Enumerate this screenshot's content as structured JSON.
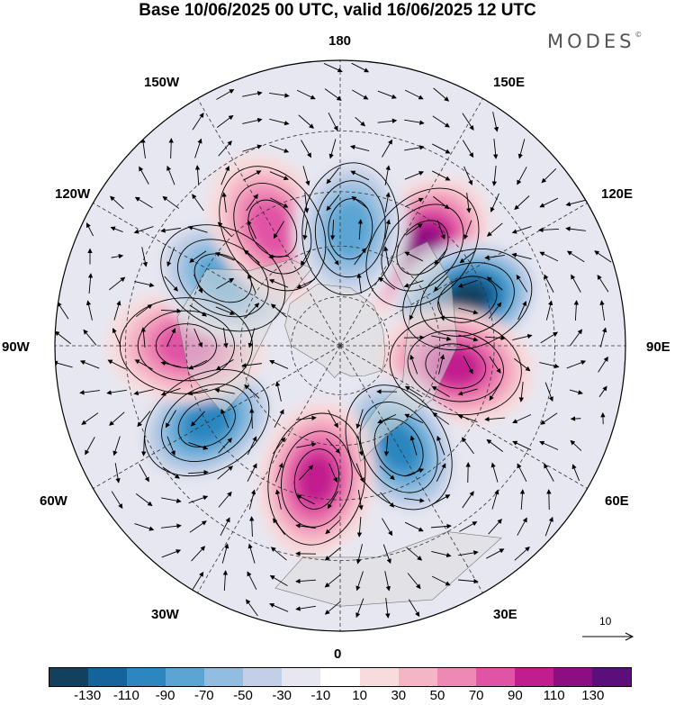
{
  "title": "Base 10/06/2025 00 UTC, valid 16/06/2025 12 UTC",
  "brand": "MODES",
  "brand_mark": "©",
  "meridian_labels": {
    "m180": "180",
    "m150w": "150W",
    "m150e": "150E",
    "m120w": "120W",
    "m120e": "120E",
    "m90w": "90W",
    "m90e": "90E",
    "m60w": "60W",
    "m60e": "60E",
    "m30w": "30W",
    "m30e": "30E",
    "m0": "0"
  },
  "reference_vector_label": "10",
  "colorbar": {
    "colors": [
      "#13405f",
      "#14639a",
      "#2c86bf",
      "#5aa5d3",
      "#92bde0",
      "#c2cfe6",
      "#e7e7f1",
      "#ffffff",
      "#f8dcdc",
      "#f4b6c6",
      "#ee88b4",
      "#e153a4",
      "#c21d8e",
      "#8d0e83",
      "#5a0f7a"
    ],
    "tick_labels": [
      "-130",
      "-110",
      "-90",
      "-70",
      "-50",
      "-30",
      "-10",
      "10",
      "30",
      "50",
      "70",
      "90",
      "110",
      "130"
    ]
  },
  "chart_data": {
    "type": "heatmap",
    "projection": "north polar stereographic",
    "field": "geopotential height anomaly with wind vectors",
    "levels": [
      -130,
      -110,
      -90,
      -70,
      -50,
      -30,
      -10,
      10,
      30,
      50,
      70,
      90,
      110,
      130
    ],
    "anomaly_centers": [
      {
        "lon": 140,
        "lat": 52,
        "value": 120
      },
      {
        "lon": 110,
        "lat": 50,
        "value": -130
      },
      {
        "lon": 80,
        "lat": 55,
        "value": 90
      },
      {
        "lon": 30,
        "lat": 55,
        "value": -100
      },
      {
        "lon": -10,
        "lat": 50,
        "value": 90
      },
      {
        "lon": -60,
        "lat": 45,
        "value": -90
      },
      {
        "lon": -90,
        "lat": 45,
        "value": 80
      },
      {
        "lon": -120,
        "lat": 50,
        "value": -70
      },
      {
        "lon": -150,
        "lat": 50,
        "value": 80
      },
      {
        "lon": 175,
        "lat": 55,
        "value": -70
      }
    ]
  }
}
